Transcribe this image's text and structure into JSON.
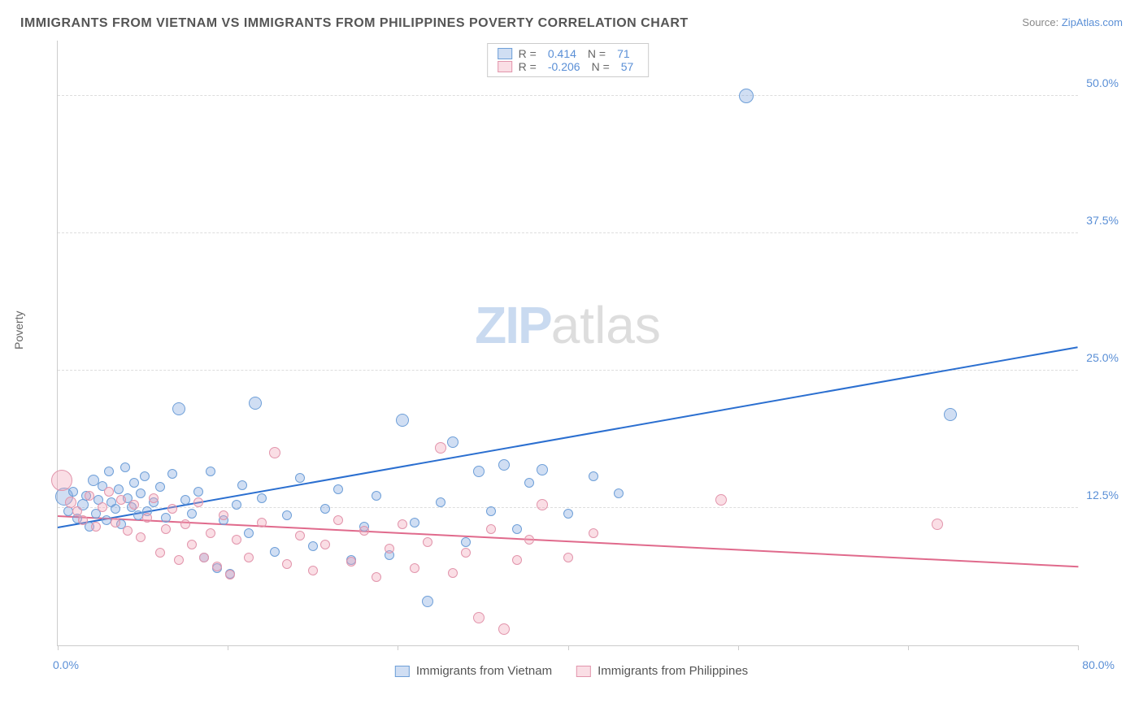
{
  "title": "IMMIGRANTS FROM VIETNAM VS IMMIGRANTS FROM PHILIPPINES POVERTY CORRELATION CHART",
  "source_label": "Source:",
  "source_link": "ZipAtlas.com",
  "ylabel": "Poverty",
  "watermark": {
    "part1": "ZIP",
    "part2": "atlas"
  },
  "chart": {
    "type": "scatter",
    "xlim": [
      0,
      80
    ],
    "ylim": [
      0,
      55
    ],
    "yticks": [
      12.5,
      25.0,
      37.5,
      50.0
    ],
    "ytick_labels": [
      "12.5%",
      "25.0%",
      "37.5%",
      "50.0%"
    ],
    "xticks": [
      0,
      13.33,
      26.67,
      40,
      53.33,
      66.67,
      80
    ],
    "xaxis_label_left": "0.0%",
    "xaxis_label_right": "80.0%",
    "grid_color": "#dddddd",
    "axis_color": "#cccccc",
    "background_color": "#ffffff",
    "series": [
      {
        "name": "Immigrants from Vietnam",
        "color_fill": "rgba(120,160,220,0.35)",
        "color_stroke": "#6e9fd8",
        "r_value": "0.414",
        "n_value": "71",
        "trend": {
          "x1": 0,
          "y1": 10.8,
          "x2": 80,
          "y2": 27.2,
          "color": "#2b6fd0",
          "width": 2
        },
        "points": [
          {
            "x": 0.5,
            "y": 13.5,
            "r": 11
          },
          {
            "x": 0.8,
            "y": 12.2,
            "r": 6
          },
          {
            "x": 1.2,
            "y": 14.0,
            "r": 6
          },
          {
            "x": 1.5,
            "y": 11.5,
            "r": 6
          },
          {
            "x": 2.0,
            "y": 12.8,
            "r": 7
          },
          {
            "x": 2.2,
            "y": 13.6,
            "r": 6
          },
          {
            "x": 2.5,
            "y": 10.8,
            "r": 6
          },
          {
            "x": 2.8,
            "y": 15.0,
            "r": 7
          },
          {
            "x": 3.0,
            "y": 12.0,
            "r": 6
          },
          {
            "x": 3.2,
            "y": 13.2,
            "r": 6
          },
          {
            "x": 3.5,
            "y": 14.5,
            "r": 6
          },
          {
            "x": 3.8,
            "y": 11.4,
            "r": 6
          },
          {
            "x": 4.0,
            "y": 15.8,
            "r": 6
          },
          {
            "x": 4.2,
            "y": 13.0,
            "r": 6
          },
          {
            "x": 4.5,
            "y": 12.4,
            "r": 6
          },
          {
            "x": 4.8,
            "y": 14.2,
            "r": 6
          },
          {
            "x": 5.0,
            "y": 11.0,
            "r": 6
          },
          {
            "x": 5.3,
            "y": 16.2,
            "r": 6
          },
          {
            "x": 5.5,
            "y": 13.4,
            "r": 6
          },
          {
            "x": 5.8,
            "y": 12.6,
            "r": 6
          },
          {
            "x": 6.0,
            "y": 14.8,
            "r": 6
          },
          {
            "x": 6.3,
            "y": 11.8,
            "r": 6
          },
          {
            "x": 6.5,
            "y": 13.8,
            "r": 6
          },
          {
            "x": 6.8,
            "y": 15.4,
            "r": 6
          },
          {
            "x": 7.0,
            "y": 12.2,
            "r": 6
          },
          {
            "x": 7.5,
            "y": 13.0,
            "r": 6
          },
          {
            "x": 8.0,
            "y": 14.4,
            "r": 6
          },
          {
            "x": 8.5,
            "y": 11.6,
            "r": 6
          },
          {
            "x": 9.0,
            "y": 15.6,
            "r": 6
          },
          {
            "x": 9.5,
            "y": 21.5,
            "r": 8
          },
          {
            "x": 10.0,
            "y": 13.2,
            "r": 6
          },
          {
            "x": 10.5,
            "y": 12.0,
            "r": 6
          },
          {
            "x": 11.0,
            "y": 14.0,
            "r": 6
          },
          {
            "x": 11.5,
            "y": 8.0,
            "r": 6
          },
          {
            "x": 12.0,
            "y": 15.8,
            "r": 6
          },
          {
            "x": 12.5,
            "y": 7.0,
            "r": 6
          },
          {
            "x": 13.0,
            "y": 11.4,
            "r": 6
          },
          {
            "x": 13.5,
            "y": 6.5,
            "r": 6
          },
          {
            "x": 14.0,
            "y": 12.8,
            "r": 6
          },
          {
            "x": 14.5,
            "y": 14.6,
            "r": 6
          },
          {
            "x": 15.0,
            "y": 10.2,
            "r": 6
          },
          {
            "x": 15.5,
            "y": 22.0,
            "r": 8
          },
          {
            "x": 16.0,
            "y": 13.4,
            "r": 6
          },
          {
            "x": 17.0,
            "y": 8.5,
            "r": 6
          },
          {
            "x": 18.0,
            "y": 11.8,
            "r": 6
          },
          {
            "x": 19.0,
            "y": 15.2,
            "r": 6
          },
          {
            "x": 20.0,
            "y": 9.0,
            "r": 6
          },
          {
            "x": 21.0,
            "y": 12.4,
            "r": 6
          },
          {
            "x": 22.0,
            "y": 14.2,
            "r": 6
          },
          {
            "x": 23.0,
            "y": 7.8,
            "r": 6
          },
          {
            "x": 24.0,
            "y": 10.8,
            "r": 6
          },
          {
            "x": 25.0,
            "y": 13.6,
            "r": 6
          },
          {
            "x": 26.0,
            "y": 8.2,
            "r": 6
          },
          {
            "x": 27.0,
            "y": 20.5,
            "r": 8
          },
          {
            "x": 28.0,
            "y": 11.2,
            "r": 6
          },
          {
            "x": 29.0,
            "y": 4.0,
            "r": 7
          },
          {
            "x": 30.0,
            "y": 13.0,
            "r": 6
          },
          {
            "x": 31.0,
            "y": 18.5,
            "r": 7
          },
          {
            "x": 32.0,
            "y": 9.4,
            "r": 6
          },
          {
            "x": 33.0,
            "y": 15.8,
            "r": 7
          },
          {
            "x": 34.0,
            "y": 12.2,
            "r": 6
          },
          {
            "x": 35.0,
            "y": 16.4,
            "r": 7
          },
          {
            "x": 36.0,
            "y": 10.6,
            "r": 6
          },
          {
            "x": 37.0,
            "y": 14.8,
            "r": 6
          },
          {
            "x": 38.0,
            "y": 16.0,
            "r": 7
          },
          {
            "x": 40.0,
            "y": 12.0,
            "r": 6
          },
          {
            "x": 42.0,
            "y": 15.4,
            "r": 6
          },
          {
            "x": 44.0,
            "y": 13.8,
            "r": 6
          },
          {
            "x": 54.0,
            "y": 50.0,
            "r": 9
          },
          {
            "x": 70.0,
            "y": 21.0,
            "r": 8
          }
        ]
      },
      {
        "name": "Immigrants from Philippines",
        "color_fill": "rgba(240,160,180,0.35)",
        "color_stroke": "#e295ac",
        "r_value": "-0.206",
        "n_value": "57",
        "trend": {
          "x1": 0,
          "y1": 11.8,
          "x2": 80,
          "y2": 7.2,
          "color": "#e06a8c",
          "width": 2
        },
        "points": [
          {
            "x": 0.3,
            "y": 15.0,
            "r": 13
          },
          {
            "x": 1.0,
            "y": 13.0,
            "r": 7
          },
          {
            "x": 1.5,
            "y": 12.2,
            "r": 6
          },
          {
            "x": 2.0,
            "y": 11.4,
            "r": 6
          },
          {
            "x": 2.5,
            "y": 13.6,
            "r": 6
          },
          {
            "x": 3.0,
            "y": 10.8,
            "r": 6
          },
          {
            "x": 3.5,
            "y": 12.6,
            "r": 6
          },
          {
            "x": 4.0,
            "y": 14.0,
            "r": 6
          },
          {
            "x": 4.5,
            "y": 11.2,
            "r": 6
          },
          {
            "x": 5.0,
            "y": 13.2,
            "r": 6
          },
          {
            "x": 5.5,
            "y": 10.4,
            "r": 6
          },
          {
            "x": 6.0,
            "y": 12.8,
            "r": 6
          },
          {
            "x": 6.5,
            "y": 9.8,
            "r": 6
          },
          {
            "x": 7.0,
            "y": 11.6,
            "r": 6
          },
          {
            "x": 7.5,
            "y": 13.4,
            "r": 6
          },
          {
            "x": 8.0,
            "y": 8.4,
            "r": 6
          },
          {
            "x": 8.5,
            "y": 10.6,
            "r": 6
          },
          {
            "x": 9.0,
            "y": 12.4,
            "r": 6
          },
          {
            "x": 9.5,
            "y": 7.8,
            "r": 6
          },
          {
            "x": 10.0,
            "y": 11.0,
            "r": 6
          },
          {
            "x": 10.5,
            "y": 9.2,
            "r": 6
          },
          {
            "x": 11.0,
            "y": 13.0,
            "r": 6
          },
          {
            "x": 11.5,
            "y": 8.0,
            "r": 6
          },
          {
            "x": 12.0,
            "y": 10.2,
            "r": 6
          },
          {
            "x": 12.5,
            "y": 7.2,
            "r": 6
          },
          {
            "x": 13.0,
            "y": 11.8,
            "r": 6
          },
          {
            "x": 13.5,
            "y": 6.4,
            "r": 6
          },
          {
            "x": 14.0,
            "y": 9.6,
            "r": 6
          },
          {
            "x": 15.0,
            "y": 8.0,
            "r": 6
          },
          {
            "x": 16.0,
            "y": 11.2,
            "r": 6
          },
          {
            "x": 17.0,
            "y": 17.5,
            "r": 7
          },
          {
            "x": 18.0,
            "y": 7.4,
            "r": 6
          },
          {
            "x": 19.0,
            "y": 10.0,
            "r": 6
          },
          {
            "x": 20.0,
            "y": 6.8,
            "r": 6
          },
          {
            "x": 21.0,
            "y": 9.2,
            "r": 6
          },
          {
            "x": 22.0,
            "y": 11.4,
            "r": 6
          },
          {
            "x": 23.0,
            "y": 7.6,
            "r": 6
          },
          {
            "x": 24.0,
            "y": 10.4,
            "r": 6
          },
          {
            "x": 25.0,
            "y": 6.2,
            "r": 6
          },
          {
            "x": 26.0,
            "y": 8.8,
            "r": 6
          },
          {
            "x": 27.0,
            "y": 11.0,
            "r": 6
          },
          {
            "x": 28.0,
            "y": 7.0,
            "r": 6
          },
          {
            "x": 29.0,
            "y": 9.4,
            "r": 6
          },
          {
            "x": 30.0,
            "y": 18.0,
            "r": 7
          },
          {
            "x": 31.0,
            "y": 6.6,
            "r": 6
          },
          {
            "x": 32.0,
            "y": 8.4,
            "r": 6
          },
          {
            "x": 33.0,
            "y": 2.5,
            "r": 7
          },
          {
            "x": 34.0,
            "y": 10.6,
            "r": 6
          },
          {
            "x": 35.0,
            "y": 1.5,
            "r": 7
          },
          {
            "x": 36.0,
            "y": 7.8,
            "r": 6
          },
          {
            "x": 37.0,
            "y": 9.6,
            "r": 6
          },
          {
            "x": 38.0,
            "y": 12.8,
            "r": 7
          },
          {
            "x": 40.0,
            "y": 8.0,
            "r": 6
          },
          {
            "x": 42.0,
            "y": 10.2,
            "r": 6
          },
          {
            "x": 52.0,
            "y": 13.2,
            "r": 7
          },
          {
            "x": 69.0,
            "y": 11.0,
            "r": 7
          }
        ]
      }
    ]
  },
  "legend_top": {
    "r_label": "R =",
    "n_label": "N ="
  },
  "colors": {
    "title": "#555555",
    "source": "#888888",
    "link": "#5a8fd6",
    "tick_label": "#5a8fd6"
  }
}
